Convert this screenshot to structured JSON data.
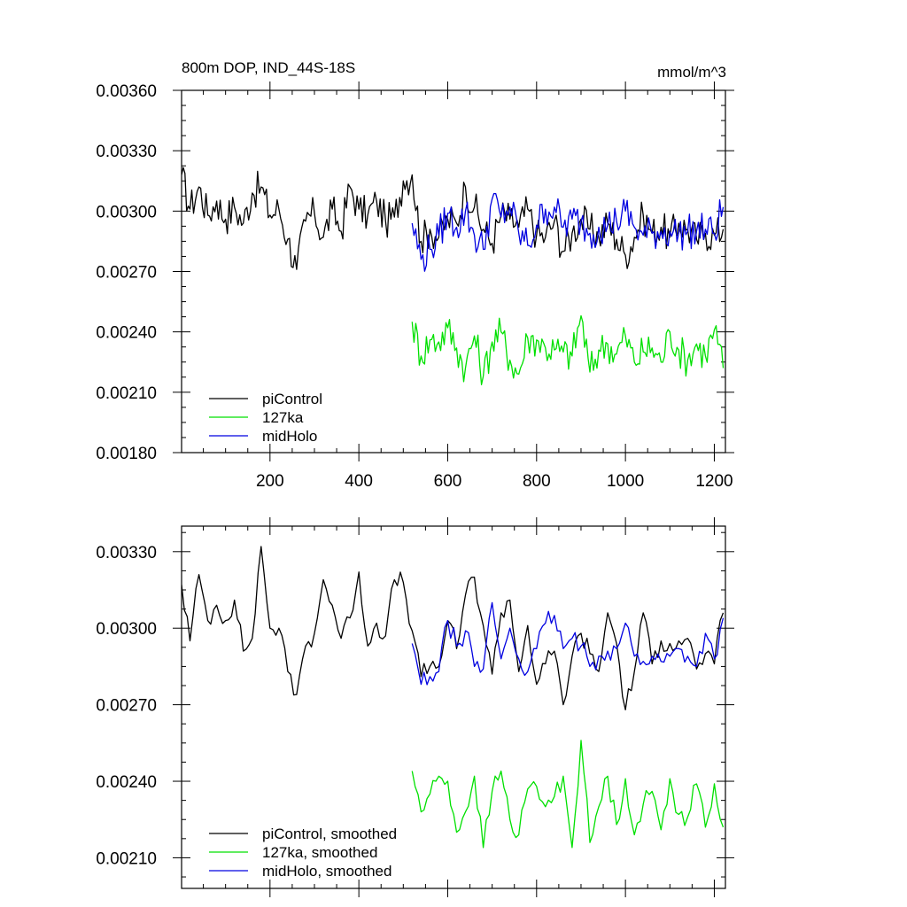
{
  "chart_data": [
    {
      "type": "line",
      "title": "800m DOP, IND_44S-18S",
      "units": "mmol/m^3",
      "xlim": [
        1,
        1225
      ],
      "ylim": [
        0.0018,
        0.0036
      ],
      "x_ticks": [
        200,
        400,
        600,
        800,
        1000,
        1200
      ],
      "x_tick_labels": [
        "200",
        "400",
        "600",
        "800",
        "1000",
        "1200"
      ],
      "y_ticks": [
        0.0018,
        0.0021,
        0.0024,
        0.0027,
        0.003,
        0.0033,
        0.0036
      ],
      "y_tick_labels": [
        "0.00180",
        "0.00210",
        "0.00240",
        "0.00270",
        "0.00300",
        "0.00330",
        "0.00360"
      ],
      "legend_position": "bottom-left",
      "series": [
        {
          "name": "piControl",
          "color": "#000000",
          "x": [
            1,
            20,
            40,
            60,
            80,
            100,
            120,
            140,
            160,
            180,
            200,
            220,
            240,
            260,
            280,
            300,
            320,
            340,
            360,
            380,
            400,
            420,
            440,
            460,
            480,
            500,
            520,
            540,
            560,
            580,
            600,
            620,
            640,
            660,
            680,
            700,
            720,
            740,
            760,
            780,
            800,
            820,
            840,
            860,
            880,
            900,
            920,
            940,
            960,
            980,
            1000,
            1020,
            1040,
            1060,
            1080,
            1100,
            1120,
            1140,
            1160,
            1180,
            1200,
            1220
          ],
          "y": [
            0.00318,
            0.00301,
            0.00312,
            0.00298,
            0.00305,
            0.00296,
            0.00302,
            0.00294,
            0.00309,
            0.00312,
            0.00298,
            0.00301,
            0.00286,
            0.00271,
            0.00295,
            0.00299,
            0.00287,
            0.00301,
            0.0029,
            0.00312,
            0.00301,
            0.00298,
            0.00305,
            0.00295,
            0.00297,
            0.00315,
            0.00318,
            0.00285,
            0.00291,
            0.00287,
            0.00296,
            0.00294,
            0.00312,
            0.00302,
            0.00291,
            0.00284,
            0.00298,
            0.00296,
            0.00292,
            0.00301,
            0.00288,
            0.00287,
            0.00295,
            0.0028,
            0.00289,
            0.00296,
            0.00291,
            0.00287,
            0.00294,
            0.00286,
            0.00278,
            0.00287,
            0.00298,
            0.00289,
            0.00292,
            0.00287,
            0.00294,
            0.00291,
            0.00286,
            0.00289,
            0.00288,
            0.00291
          ]
        },
        {
          "name": "127ka",
          "color": "#00e000",
          "x": [
            520,
            540,
            560,
            580,
            600,
            620,
            640,
            660,
            680,
            700,
            720,
            740,
            760,
            780,
            800,
            820,
            840,
            860,
            880,
            900,
            920,
            940,
            960,
            980,
            1000,
            1020,
            1040,
            1060,
            1080,
            1100,
            1120,
            1140,
            1160,
            1180,
            1200,
            1220
          ],
          "y": [
            0.00245,
            0.00228,
            0.00236,
            0.00235,
            0.00242,
            0.00232,
            0.00222,
            0.00238,
            0.00218,
            0.00235,
            0.0024,
            0.00226,
            0.00219,
            0.00237,
            0.00236,
            0.00232,
            0.00231,
            0.0023,
            0.00228,
            0.00248,
            0.0022,
            0.00231,
            0.00234,
            0.00229,
            0.00238,
            0.00225,
            0.0023,
            0.00232,
            0.00225,
            0.0024,
            0.00231,
            0.00226,
            0.00234,
            0.00228,
            0.00241,
            0.00222
          ]
        },
        {
          "name": "midHolo",
          "color": "#0000e0",
          "x": [
            520,
            540,
            560,
            580,
            600,
            620,
            640,
            660,
            680,
            700,
            720,
            740,
            760,
            780,
            800,
            820,
            840,
            860,
            880,
            900,
            920,
            940,
            960,
            980,
            1000,
            1020,
            1040,
            1060,
            1080,
            1100,
            1120,
            1140,
            1160,
            1180,
            1200,
            1220
          ],
          "y": [
            0.00294,
            0.00276,
            0.00281,
            0.00288,
            0.00299,
            0.00292,
            0.003,
            0.00288,
            0.00281,
            0.00306,
            0.00297,
            0.00302,
            0.00289,
            0.00283,
            0.00293,
            0.00301,
            0.00302,
            0.00292,
            0.00296,
            0.00295,
            0.00289,
            0.00292,
            0.00293,
            0.00295,
            0.003,
            0.00292,
            0.00288,
            0.00289,
            0.0029,
            0.0029,
            0.00289,
            0.0029,
            0.0029,
            0.00291,
            0.00289,
            0.00302
          ]
        }
      ],
      "legend": [
        "piControl",
        "127ka",
        "midHolo"
      ]
    },
    {
      "type": "line",
      "title": "",
      "xlim": [
        1,
        1225
      ],
      "ylim": [
        0.00198,
        0.0034
      ],
      "x_ticks": [
        200,
        400,
        600,
        800,
        1000,
        1200
      ],
      "x_tick_labels": [],
      "y_ticks": [
        0.0021,
        0.0024,
        0.0027,
        0.003,
        0.0033
      ],
      "y_tick_labels": [
        "0.00210",
        "0.00240",
        "0.00270",
        "0.00300",
        "0.00330"
      ],
      "legend_position": "bottom-left",
      "series": [
        {
          "name": "piControl, smoothed",
          "color": "#000000",
          "x": [
            1,
            20,
            40,
            60,
            80,
            100,
            120,
            140,
            160,
            180,
            200,
            220,
            240,
            260,
            280,
            300,
            320,
            340,
            360,
            380,
            400,
            420,
            440,
            460,
            480,
            500,
            520,
            540,
            560,
            580,
            600,
            620,
            640,
            660,
            680,
            700,
            720,
            740,
            760,
            780,
            800,
            820,
            840,
            860,
            880,
            900,
            920,
            940,
            960,
            980,
            1000,
            1020,
            1040,
            1060,
            1080,
            1100,
            1120,
            1140,
            1160,
            1180,
            1200,
            1220
          ],
          "y": [
            0.00317,
            0.00295,
            0.00321,
            0.00303,
            0.00309,
            0.00303,
            0.00311,
            0.00291,
            0.00296,
            0.00332,
            0.003,
            0.003,
            0.00283,
            0.00274,
            0.00293,
            0.00298,
            0.00319,
            0.00309,
            0.00296,
            0.00304,
            0.00322,
            0.00293,
            0.00302,
            0.00297,
            0.00319,
            0.00318,
            0.00299,
            0.00281,
            0.00285,
            0.00285,
            0.00303,
            0.00292,
            0.00313,
            0.0032,
            0.00301,
            0.00282,
            0.00306,
            0.00311,
            0.00283,
            0.00301,
            0.00278,
            0.00286,
            0.00291,
            0.0027,
            0.00289,
            0.00298,
            0.0029,
            0.00283,
            0.00306,
            0.00294,
            0.00268,
            0.00283,
            0.00306,
            0.00286,
            0.00295,
            0.00294,
            0.00295,
            0.00296,
            0.00284,
            0.0029,
            0.00286,
            0.00306
          ]
        },
        {
          "name": "127ka, smoothed",
          "color": "#00e000",
          "x": [
            520,
            540,
            560,
            580,
            600,
            620,
            640,
            660,
            680,
            700,
            720,
            740,
            760,
            780,
            800,
            820,
            840,
            860,
            880,
            900,
            920,
            940,
            960,
            980,
            1000,
            1020,
            1040,
            1060,
            1080,
            1100,
            1120,
            1140,
            1160,
            1180,
            1200,
            1220
          ],
          "y": [
            0.00244,
            0.00228,
            0.00235,
            0.00242,
            0.0024,
            0.0022,
            0.00228,
            0.00242,
            0.00214,
            0.00236,
            0.00244,
            0.00225,
            0.00219,
            0.00237,
            0.00238,
            0.0023,
            0.00234,
            0.00242,
            0.00214,
            0.00256,
            0.00216,
            0.0023,
            0.00242,
            0.00223,
            0.00241,
            0.00219,
            0.00231,
            0.00236,
            0.00221,
            0.00241,
            0.00227,
            0.00226,
            0.00239,
            0.00222,
            0.00239,
            0.00222
          ]
        },
        {
          "name": "midHolo, smoothed",
          "color": "#0000e0",
          "x": [
            520,
            540,
            560,
            580,
            600,
            620,
            640,
            660,
            680,
            700,
            720,
            740,
            760,
            780,
            800,
            820,
            840,
            860,
            880,
            900,
            920,
            940,
            960,
            980,
            1000,
            1020,
            1040,
            1060,
            1080,
            1100,
            1120,
            1140,
            1160,
            1180,
            1200,
            1220
          ],
          "y": [
            0.00294,
            0.00278,
            0.00281,
            0.00283,
            0.00303,
            0.00293,
            0.00299,
            0.00285,
            0.00284,
            0.0031,
            0.00288,
            0.003,
            0.00288,
            0.00283,
            0.00292,
            0.00302,
            0.00305,
            0.00292,
            0.00296,
            0.00293,
            0.00285,
            0.00289,
            0.00291,
            0.00292,
            0.00302,
            0.00289,
            0.00287,
            0.00289,
            0.00287,
            0.00289,
            0.00292,
            0.00289,
            0.00285,
            0.00298,
            0.00288,
            0.00304
          ]
        }
      ],
      "legend": [
        "piControl, smoothed",
        "127ka, smoothed",
        "midHolo, smoothed"
      ]
    }
  ]
}
